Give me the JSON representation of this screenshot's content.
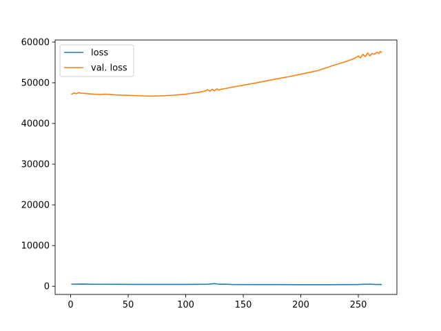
{
  "chart_data": {
    "type": "line",
    "title": "",
    "xlabel": "",
    "ylabel": "",
    "xlim": [
      -13.5,
      283.5
    ],
    "ylim": [
      -2000,
      60500
    ],
    "x_ticks": [
      0,
      50,
      100,
      150,
      200,
      250
    ],
    "y_ticks": [
      0,
      10000,
      20000,
      30000,
      40000,
      50000,
      60000
    ],
    "grid": false,
    "legend": {
      "placement": "top-left",
      "entries": [
        "loss",
        "val. loss"
      ]
    },
    "series": [
      {
        "name": "loss",
        "color": "#1f77b4",
        "points": [
          [
            1,
            520
          ],
          [
            10,
            560
          ],
          [
            20,
            500
          ],
          [
            40,
            480
          ],
          [
            60,
            470
          ],
          [
            80,
            460
          ],
          [
            100,
            470
          ],
          [
            110,
            480
          ],
          [
            118,
            500
          ],
          [
            122,
            580
          ],
          [
            125,
            650
          ],
          [
            128,
            560
          ],
          [
            131,
            510
          ],
          [
            135,
            520
          ],
          [
            140,
            450
          ],
          [
            160,
            430
          ],
          [
            180,
            420
          ],
          [
            200,
            410
          ],
          [
            220,
            410
          ],
          [
            240,
            420
          ],
          [
            250,
            440
          ],
          [
            256,
            520
          ],
          [
            260,
            540
          ],
          [
            264,
            460
          ],
          [
            270,
            450
          ]
        ]
      },
      {
        "name": "val. loss",
        "color": "#ff7f0e",
        "points": [
          [
            1,
            47200
          ],
          [
            3,
            47500
          ],
          [
            5,
            47300
          ],
          [
            7,
            47600
          ],
          [
            9,
            47400
          ],
          [
            12,
            47400
          ],
          [
            15,
            47300
          ],
          [
            20,
            47200
          ],
          [
            25,
            47100
          ],
          [
            30,
            47200
          ],
          [
            35,
            47100
          ],
          [
            40,
            47000
          ],
          [
            50,
            46900
          ],
          [
            60,
            46800
          ],
          [
            70,
            46700
          ],
          [
            80,
            46800
          ],
          [
            90,
            46950
          ],
          [
            100,
            47200
          ],
          [
            110,
            47600
          ],
          [
            115,
            47850
          ],
          [
            117,
            48000
          ],
          [
            119,
            48300
          ],
          [
            121,
            47900
          ],
          [
            123,
            48400
          ],
          [
            125,
            48000
          ],
          [
            127,
            48500
          ],
          [
            129,
            48200
          ],
          [
            131,
            48400
          ],
          [
            135,
            48600
          ],
          [
            140,
            48900
          ],
          [
            150,
            49400
          ],
          [
            160,
            49900
          ],
          [
            170,
            50450
          ],
          [
            180,
            51000
          ],
          [
            190,
            51500
          ],
          [
            200,
            52100
          ],
          [
            210,
            52700
          ],
          [
            215,
            53000
          ],
          [
            220,
            53500
          ],
          [
            230,
            54400
          ],
          [
            240,
            55300
          ],
          [
            245,
            55800
          ],
          [
            248,
            56200
          ],
          [
            250,
            56600
          ],
          [
            252,
            56100
          ],
          [
            254,
            57000
          ],
          [
            256,
            56400
          ],
          [
            258,
            57300
          ],
          [
            260,
            56600
          ],
          [
            262,
            57200
          ],
          [
            264,
            57000
          ],
          [
            266,
            57500
          ],
          [
            268,
            57200
          ],
          [
            269,
            57700
          ],
          [
            270,
            57500
          ]
        ]
      }
    ]
  }
}
